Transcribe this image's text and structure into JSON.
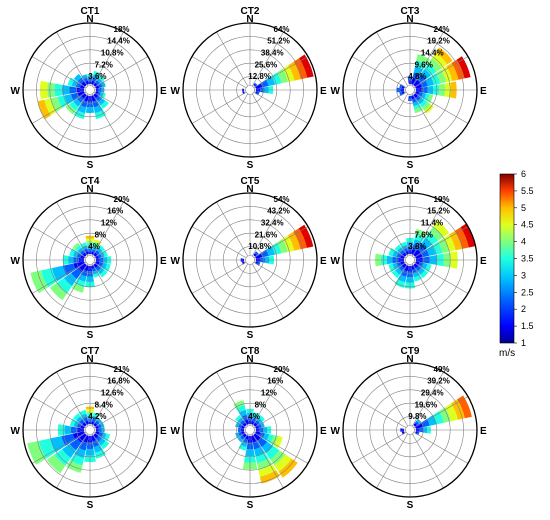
{
  "speed_scale": {
    "min": 1,
    "max": 6,
    "ticks": [
      "1",
      "1.5",
      "2",
      "2.5",
      "3",
      "3.5",
      "4",
      "4.5",
      "5",
      "5.5",
      "6"
    ],
    "unit": "m/s",
    "colors": [
      "#00008f",
      "#0000ff",
      "#0060ff",
      "#00bfff",
      "#20ffdf",
      "#80ff7f",
      "#dfff20",
      "#ffbf00",
      "#ff6000",
      "#df0000",
      "#800000"
    ]
  },
  "chart_data": [
    {
      "type": "polar-bar",
      "title": "CT1",
      "directions": [
        "N",
        "E",
        "S",
        "W"
      ],
      "rlim": [
        0,
        18
      ],
      "ring_labels": [
        "3.6%",
        "7.2%",
        "10.8%",
        "14.4%",
        "18%"
      ],
      "sectors": [
        {
          "dir": 0,
          "freq": 3,
          "max_speed": 3
        },
        {
          "dir": 22.5,
          "freq": 4,
          "max_speed": 3
        },
        {
          "dir": 45,
          "freq": 3.5,
          "max_speed": 3
        },
        {
          "dir": 67.5,
          "freq": 3,
          "max_speed": 2.5
        },
        {
          "dir": 90,
          "freq": 2.5,
          "max_speed": 2.5
        },
        {
          "dir": 112.5,
          "freq": 3,
          "max_speed": 3
        },
        {
          "dir": 135,
          "freq": 5,
          "max_speed": 3
        },
        {
          "dir": 157.5,
          "freq": 7,
          "max_speed": 3
        },
        {
          "dir": 180,
          "freq": 5,
          "max_speed": 2.5
        },
        {
          "dir": 202.5,
          "freq": 7,
          "max_speed": 3
        },
        {
          "dir": 225,
          "freq": 7,
          "max_speed": 3.5
        },
        {
          "dir": 247.5,
          "freq": 14,
          "max_speed": 4.5
        },
        {
          "dir": 270,
          "freq": 13,
          "max_speed": 4
        },
        {
          "dir": 292.5,
          "freq": 5,
          "max_speed": 3
        },
        {
          "dir": 315,
          "freq": 4,
          "max_speed": 2.5
        },
        {
          "dir": 337.5,
          "freq": 3,
          "max_speed": 2.5
        }
      ]
    },
    {
      "type": "polar-bar",
      "title": "CT2",
      "directions": [
        "N",
        "E",
        "S",
        "W"
      ],
      "rlim": [
        0,
        64
      ],
      "ring_labels": [
        "12.8%",
        "25.6%",
        "38.4%",
        "51.2%",
        "64%"
      ],
      "sectors": [
        {
          "dir": 45,
          "freq": 3,
          "max_speed": 2
        },
        {
          "dir": 67.5,
          "freq": 62,
          "max_speed": 5.5
        },
        {
          "dir": 90,
          "freq": 18,
          "max_speed": 3
        },
        {
          "dir": 112.5,
          "freq": 4,
          "max_speed": 2
        },
        {
          "dir": 247.5,
          "freq": 2,
          "max_speed": 1.5
        },
        {
          "dir": 270,
          "freq": 2,
          "max_speed": 1.5
        }
      ]
    },
    {
      "type": "polar-bar",
      "title": "CT3",
      "directions": [
        "N",
        "E",
        "S",
        "W"
      ],
      "rlim": [
        0,
        24
      ],
      "ring_labels": [
        "4.8%",
        "9.6%",
        "14.4%",
        "19.2%",
        "24%"
      ],
      "sectors": [
        {
          "dir": 0,
          "freq": 3,
          "max_speed": 2
        },
        {
          "dir": 22.5,
          "freq": 12,
          "max_speed": 3.5
        },
        {
          "dir": 45,
          "freq": 18,
          "max_speed": 4.5
        },
        {
          "dir": 67.5,
          "freq": 22,
          "max_speed": 5.5
        },
        {
          "dir": 90,
          "freq": 16,
          "max_speed": 4.5
        },
        {
          "dir": 112.5,
          "freq": 7,
          "max_speed": 3.5
        },
        {
          "dir": 135,
          "freq": 9,
          "max_speed": 4
        },
        {
          "dir": 157.5,
          "freq": 7,
          "max_speed": 3.5
        },
        {
          "dir": 180,
          "freq": 2,
          "max_speed": 2
        },
        {
          "dir": 247.5,
          "freq": 2,
          "max_speed": 2
        },
        {
          "dir": 270,
          "freq": 3,
          "max_speed": 2
        },
        {
          "dir": 292.5,
          "freq": 2,
          "max_speed": 2
        }
      ]
    },
    {
      "type": "polar-bar",
      "title": "CT4",
      "directions": [
        "N",
        "E",
        "S",
        "W"
      ],
      "rlim": [
        0,
        20
      ],
      "ring_labels": [
        "4%",
        "8%",
        "12%",
        "16%",
        "20%"
      ],
      "sectors": [
        {
          "dir": 0,
          "freq": 6,
          "max_speed": 4.5
        },
        {
          "dir": 22.5,
          "freq": 5,
          "max_speed": 4
        },
        {
          "dir": 45,
          "freq": 4,
          "max_speed": 3
        },
        {
          "dir": 67.5,
          "freq": 4,
          "max_speed": 3
        },
        {
          "dir": 90,
          "freq": 5,
          "max_speed": 3
        },
        {
          "dir": 112.5,
          "freq": 5,
          "max_speed": 3
        },
        {
          "dir": 135,
          "freq": 5,
          "max_speed": 3
        },
        {
          "dir": 157.5,
          "freq": 4,
          "max_speed": 3
        },
        {
          "dir": 180,
          "freq": 7,
          "max_speed": 3
        },
        {
          "dir": 202.5,
          "freq": 9,
          "max_speed": 3.5
        },
        {
          "dir": 225,
          "freq": 14,
          "max_speed": 3.5
        },
        {
          "dir": 247.5,
          "freq": 18,
          "max_speed": 3.5
        },
        {
          "dir": 270,
          "freq": 7,
          "max_speed": 3
        },
        {
          "dir": 292.5,
          "freq": 5,
          "max_speed": 3
        },
        {
          "dir": 315,
          "freq": 5,
          "max_speed": 3.5
        },
        {
          "dir": 337.5,
          "freq": 4,
          "max_speed": 3
        }
      ]
    },
    {
      "type": "polar-bar",
      "title": "CT5",
      "directions": [
        "N",
        "E",
        "S",
        "W"
      ],
      "rlim": [
        0,
        54
      ],
      "ring_labels": [
        "10.8%",
        "21.6%",
        "32.4%",
        "43.2%",
        "54%"
      ],
      "sectors": [
        {
          "dir": 45,
          "freq": 4,
          "max_speed": 2
        },
        {
          "dir": 67.5,
          "freq": 52,
          "max_speed": 5.5
        },
        {
          "dir": 90,
          "freq": 16,
          "max_speed": 3
        },
        {
          "dir": 112.5,
          "freq": 4,
          "max_speed": 2
        },
        {
          "dir": 247.5,
          "freq": 2,
          "max_speed": 1.5
        },
        {
          "dir": 270,
          "freq": 3,
          "max_speed": 1.5
        }
      ]
    },
    {
      "type": "polar-bar",
      "title": "CT6",
      "directions": [
        "N",
        "E",
        "S",
        "W"
      ],
      "rlim": [
        0,
        19
      ],
      "ring_labels": [
        "3.8%",
        "7.6%",
        "11.4%",
        "15.2%",
        "19%"
      ],
      "sectors": [
        {
          "dir": 0,
          "freq": 5,
          "max_speed": 3
        },
        {
          "dir": 22.5,
          "freq": 8,
          "max_speed": 3.5
        },
        {
          "dir": 45,
          "freq": 13,
          "max_speed": 4
        },
        {
          "dir": 67.5,
          "freq": 19,
          "max_speed": 5.5
        },
        {
          "dir": 90,
          "freq": 13,
          "max_speed": 4
        },
        {
          "dir": 112.5,
          "freq": 5,
          "max_speed": 3
        },
        {
          "dir": 135,
          "freq": 5,
          "max_speed": 3
        },
        {
          "dir": 157.5,
          "freq": 5,
          "max_speed": 3
        },
        {
          "dir": 180,
          "freq": 7,
          "max_speed": 3
        },
        {
          "dir": 202.5,
          "freq": 7,
          "max_speed": 3
        },
        {
          "dir": 225,
          "freq": 5,
          "max_speed": 3
        },
        {
          "dir": 247.5,
          "freq": 5,
          "max_speed": 3
        },
        {
          "dir": 270,
          "freq": 9,
          "max_speed": 3.5
        },
        {
          "dir": 292.5,
          "freq": 5,
          "max_speed": 3
        },
        {
          "dir": 315,
          "freq": 4,
          "max_speed": 3
        },
        {
          "dir": 337.5,
          "freq": 4,
          "max_speed": 3
        }
      ]
    },
    {
      "type": "polar-bar",
      "title": "CT7",
      "directions": [
        "N",
        "E",
        "S",
        "W"
      ],
      "rlim": [
        0,
        21
      ],
      "ring_labels": [
        "4.2%",
        "8.4%",
        "12.6%",
        "16.8%",
        "21%"
      ],
      "sectors": [
        {
          "dir": 0,
          "freq": 6,
          "max_speed": 4.5
        },
        {
          "dir": 22.5,
          "freq": 4,
          "max_speed": 3
        },
        {
          "dir": 45,
          "freq": 3,
          "max_speed": 2.5
        },
        {
          "dir": 67.5,
          "freq": 3,
          "max_speed": 2.5
        },
        {
          "dir": 90,
          "freq": 3,
          "max_speed": 2.5
        },
        {
          "dir": 112.5,
          "freq": 5,
          "max_speed": 3
        },
        {
          "dir": 135,
          "freq": 6,
          "max_speed": 3
        },
        {
          "dir": 157.5,
          "freq": 8,
          "max_speed": 3
        },
        {
          "dir": 180,
          "freq": 9,
          "max_speed": 3
        },
        {
          "dir": 202.5,
          "freq": 13,
          "max_speed": 3.5
        },
        {
          "dir": 225,
          "freq": 16,
          "max_speed": 3.5
        },
        {
          "dir": 247.5,
          "freq": 20,
          "max_speed": 3.5
        },
        {
          "dir": 270,
          "freq": 9,
          "max_speed": 3
        },
        {
          "dir": 292.5,
          "freq": 5,
          "max_speed": 3
        },
        {
          "dir": 315,
          "freq": 5,
          "max_speed": 3
        },
        {
          "dir": 337.5,
          "freq": 5,
          "max_speed": 3
        }
      ]
    },
    {
      "type": "polar-bar",
      "title": "CT8",
      "directions": [
        "N",
        "E",
        "S",
        "W"
      ],
      "rlim": [
        0,
        20
      ],
      "ring_labels": [
        "4%",
        "8%",
        "12%",
        "16%",
        "20%"
      ],
      "sectors": [
        {
          "dir": 0,
          "freq": 5,
          "max_speed": 3
        },
        {
          "dir": 22.5,
          "freq": 4,
          "max_speed": 3
        },
        {
          "dir": 45,
          "freq": 4,
          "max_speed": 3
        },
        {
          "dir": 67.5,
          "freq": 3,
          "max_speed": 2.5
        },
        {
          "dir": 90,
          "freq": 5,
          "max_speed": 3
        },
        {
          "dir": 112.5,
          "freq": 9,
          "max_speed": 4
        },
        {
          "dir": 135,
          "freq": 17,
          "max_speed": 4.5
        },
        {
          "dir": 157.5,
          "freq": 16,
          "max_speed": 4.5
        },
        {
          "dir": 180,
          "freq": 11,
          "max_speed": 3.5
        },
        {
          "dir": 202.5,
          "freq": 5,
          "max_speed": 3
        },
        {
          "dir": 225,
          "freq": 3,
          "max_speed": 2.5
        },
        {
          "dir": 247.5,
          "freq": 3,
          "max_speed": 2.5
        },
        {
          "dir": 270,
          "freq": 2,
          "max_speed": 2
        },
        {
          "dir": 292.5,
          "freq": 3,
          "max_speed": 2.5
        },
        {
          "dir": 315,
          "freq": 4,
          "max_speed": 3
        },
        {
          "dir": 337.5,
          "freq": 8,
          "max_speed": 3.5
        }
      ]
    },
    {
      "type": "polar-bar",
      "title": "CT9",
      "directions": [
        "N",
        "E",
        "S",
        "W"
      ],
      "rlim": [
        0,
        49
      ],
      "ring_labels": [
        "9.8%",
        "19.6%",
        "29.4%",
        "39.2%",
        "49%"
      ],
      "sectors": [
        {
          "dir": 45,
          "freq": 6,
          "max_speed": 2.5
        },
        {
          "dir": 67.5,
          "freq": 46,
          "max_speed": 5
        },
        {
          "dir": 90,
          "freq": 12,
          "max_speed": 3
        },
        {
          "dir": 112.5,
          "freq": 3,
          "max_speed": 2
        },
        {
          "dir": 247.5,
          "freq": 2,
          "max_speed": 1.5
        },
        {
          "dir": 270,
          "freq": 3,
          "max_speed": 1.5
        }
      ]
    }
  ]
}
